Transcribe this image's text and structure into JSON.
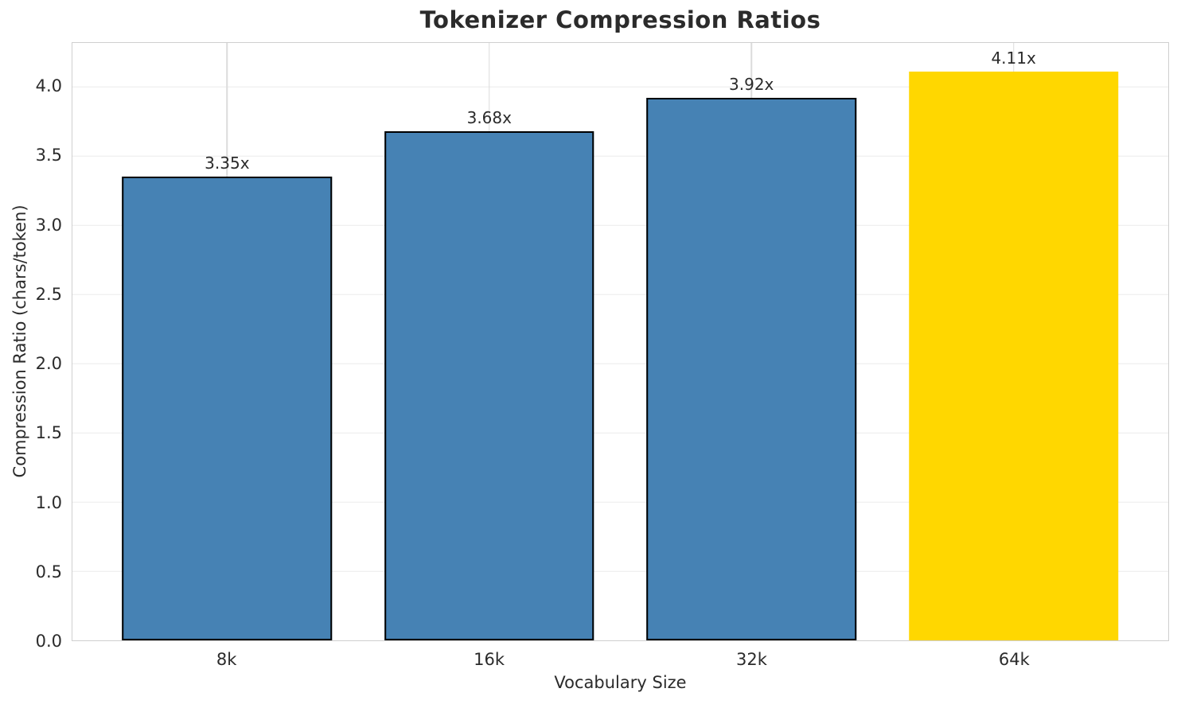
{
  "chart_data": {
    "type": "bar",
    "title": "Tokenizer Compression Ratios",
    "xlabel": "Vocabulary Size",
    "ylabel": "Compression Ratio (chars/token)",
    "categories": [
      "8k",
      "16k",
      "32k",
      "64k"
    ],
    "values": [
      3.35,
      3.68,
      3.92,
      4.11
    ],
    "bar_labels": [
      "3.35x",
      "3.68x",
      "3.92x",
      "4.11x"
    ],
    "ytick_values": [
      0.0,
      0.5,
      1.0,
      1.5,
      2.0,
      2.5,
      3.0,
      3.5,
      4.0
    ],
    "ytick_labels": [
      "0.0",
      "0.5",
      "1.0",
      "1.5",
      "2.0",
      "2.5",
      "3.0",
      "3.5",
      "4.0"
    ],
    "ylim": [
      0,
      4.316
    ],
    "grid": true,
    "legend_position": "none",
    "highlight_index": 3,
    "colors": {
      "bar_default": "#4682B4",
      "bar_highlight": "#FFD700",
      "bar_edge": "#000000",
      "grid_horizontal": "#ececec",
      "grid_vertical": "#dcdcdc",
      "spine": "#cfcfcf",
      "text": "#2b2b2b"
    }
  }
}
